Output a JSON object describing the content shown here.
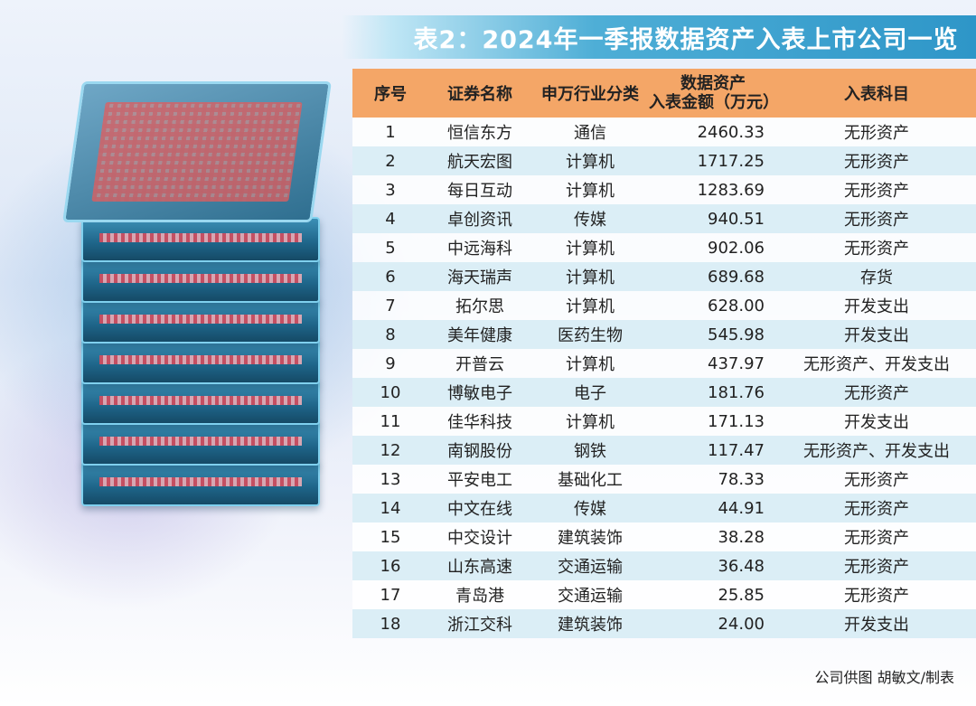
{
  "title": "表2：2024年一季报数据资产入表上市公司一览",
  "headers": {
    "no": "序号",
    "name": "证券名称",
    "industry": "申万行业分类",
    "amount_line1": "数据资产",
    "amount_line2": "入表金额（万元）",
    "subject": "入表科目"
  },
  "rows": [
    {
      "no": "1",
      "name": "恒信东方",
      "industry": "通信",
      "amount": "2460.33",
      "subject": "无形资产"
    },
    {
      "no": "2",
      "name": "航天宏图",
      "industry": "计算机",
      "amount": "1717.25",
      "subject": "无形资产"
    },
    {
      "no": "3",
      "name": "每日互动",
      "industry": "计算机",
      "amount": "1283.69",
      "subject": "无形资产"
    },
    {
      "no": "4",
      "name": "卓创资讯",
      "industry": "传媒",
      "amount": "940.51",
      "subject": "无形资产"
    },
    {
      "no": "5",
      "name": "中远海科",
      "industry": "计算机",
      "amount": "902.06",
      "subject": "无形资产"
    },
    {
      "no": "6",
      "name": "海天瑞声",
      "industry": "计算机",
      "amount": "689.68",
      "subject": "存货"
    },
    {
      "no": "7",
      "name": "拓尔思",
      "industry": "计算机",
      "amount": "628.00",
      "subject": "开发支出"
    },
    {
      "no": "8",
      "name": "美年健康",
      "industry": "医药生物",
      "amount": "545.98",
      "subject": "开发支出"
    },
    {
      "no": "9",
      "name": "开普云",
      "industry": "计算机",
      "amount": "437.97",
      "subject": "无形资产、开发支出"
    },
    {
      "no": "10",
      "name": "博敏电子",
      "industry": "电子",
      "amount": "181.76",
      "subject": "无形资产"
    },
    {
      "no": "11",
      "name": "佳华科技",
      "industry": "计算机",
      "amount": "171.13",
      "subject": "开发支出"
    },
    {
      "no": "12",
      "name": "南钢股份",
      "industry": "钢铁",
      "amount": "117.47",
      "subject": "无形资产、开发支出"
    },
    {
      "no": "13",
      "name": "平安电工",
      "industry": "基础化工",
      "amount": "78.33",
      "subject": "无形资产"
    },
    {
      "no": "14",
      "name": "中文在线",
      "industry": "传媒",
      "amount": "44.91",
      "subject": "无形资产"
    },
    {
      "no": "15",
      "name": "中交设计",
      "industry": "建筑装饰",
      "amount": "38.28",
      "subject": "无形资产"
    },
    {
      "no": "16",
      "name": "山东高速",
      "industry": "交通运输",
      "amount": "36.48",
      "subject": "无形资产"
    },
    {
      "no": "17",
      "name": "青岛港",
      "industry": "交通运输",
      "amount": "25.85",
      "subject": "无形资产"
    },
    {
      "no": "18",
      "name": "浙江交科",
      "industry": "建筑装饰",
      "amount": "24.00",
      "subject": "开发支出"
    }
  ],
  "source": "公司供图  胡敏文/制表",
  "colors": {
    "header_bg": "#f4a667",
    "row_shade": "#dbeef6",
    "banner": "#2e96c8"
  }
}
